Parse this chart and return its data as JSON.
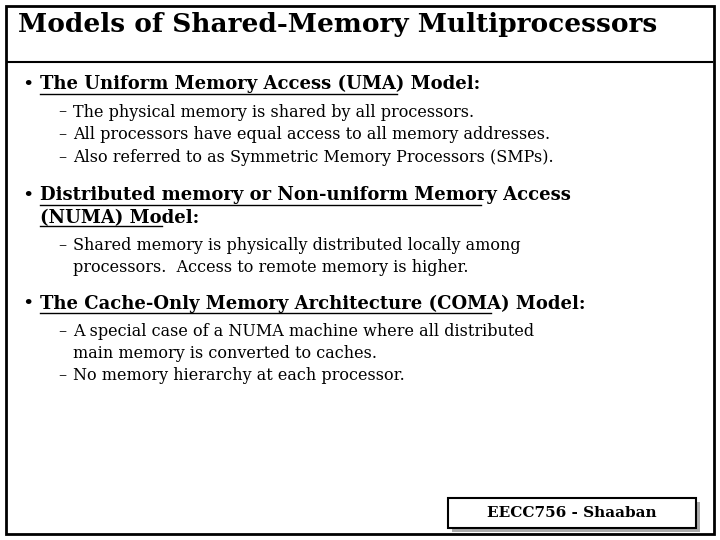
{
  "title": "Models of Shared-Memory Multiprocessors",
  "background_color": "#ffffff",
  "border_color": "#000000",
  "text_color": "#000000",
  "title_fontsize": 19,
  "bullet_fontsize": 13,
  "sub_fontsize": 11.5,
  "footer": "EECC756 - Shaaban",
  "footer_fontsize": 11,
  "bullets": [
    {
      "text": "The Uniform Memory Access (UMA) Model:",
      "subs": [
        "The physical memory is shared by all processors.",
        "All processors have equal access to all memory addresses.",
        "Also referred to as Symmetric Memory Processors (SMPs)."
      ]
    },
    {
      "text": "Distributed memory or Non-uniform Memory Access\n(NUMA) Model:",
      "subs": [
        "Shared memory is physically distributed locally among\nprocessors.  Access to remote memory is higher."
      ]
    },
    {
      "text": "The Cache-Only Memory Architecture (COMA) Model:",
      "subs": [
        "A special case of a NUMA machine where all distributed\nmain memory is converted to caches.",
        "No memory hierarchy at each processor."
      ]
    }
  ]
}
